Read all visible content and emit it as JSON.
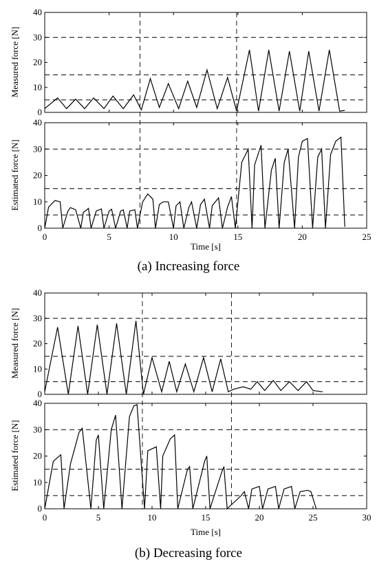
{
  "chart_data": [
    {
      "type": "line",
      "caption": "(a) Increasing force",
      "xlabel": "Time [s]",
      "xlim": [
        0,
        25
      ],
      "xticks": [
        0,
        5,
        10,
        15,
        20,
        25
      ],
      "vlines": [
        7.4,
        14.9
      ],
      "panels": [
        {
          "ylabel": "Measured force [N]",
          "ylim": [
            0,
            40
          ],
          "yticks": [
            0,
            10,
            20,
            30,
            40
          ],
          "hlines": [
            5,
            15,
            30
          ],
          "series": [
            {
              "x": [
                0,
                1.0,
                1.7,
                2.4,
                3.1,
                3.8,
                4.6,
                5.3,
                6.1,
                6.9,
                7.5,
                8.2,
                8.9,
                9.6,
                10.4,
                11.1,
                11.8,
                12.6,
                13.4,
                14.2,
                14.9,
                15.9,
                16.6,
                17.4,
                18.2,
                19.0,
                19.8,
                20.5,
                21.3,
                22.1,
                22.9,
                23.3
              ],
              "y": [
                1.5,
                5.8,
                1.5,
                5.3,
                1.5,
                5.8,
                1.5,
                6.5,
                1.5,
                7.0,
                1.0,
                13.5,
                2.0,
                11.5,
                1.5,
                12.5,
                2.0,
                17.0,
                1.5,
                14.0,
                0.5,
                25.0,
                0.5,
                25.0,
                0.5,
                24.5,
                0.5,
                24.5,
                0.5,
                25.0,
                0.5,
                0.8
              ]
            }
          ]
        },
        {
          "ylabel": "Estimated force [N]",
          "ylim": [
            0,
            40
          ],
          "yticks": [
            0,
            10,
            20,
            30,
            40
          ],
          "hlines": [
            5,
            15,
            30
          ],
          "series": [
            {
              "x": [
                0,
                0.3,
                0.8,
                1.2,
                1.4,
                1.8,
                2.0,
                2.4,
                2.8,
                3.0,
                3.4,
                3.6,
                4.0,
                4.4,
                4.6,
                5.0,
                5.2,
                5.5,
                5.9,
                6.1,
                6.4,
                6.6,
                7.0,
                7.2,
                7.6,
                8.0,
                8.4,
                8.6,
                8.9,
                9.2,
                9.6,
                10.0,
                10.2,
                10.5,
                10.8,
                11.2,
                11.4,
                11.8,
                12.1,
                12.4,
                12.8,
                13.0,
                13.5,
                13.8,
                14.2,
                14.5,
                14.8,
                15.3,
                15.8,
                16.1,
                16.3,
                16.8,
                17.1,
                17.6,
                17.9,
                18.2,
                18.6,
                18.9,
                19.4,
                19.7,
                20.0,
                20.4,
                20.8,
                21.2,
                21.5,
                21.8,
                22.2,
                22.6,
                23.0,
                23.3
              ],
              "y": [
                0,
                8,
                10.5,
                10,
                0,
                6.5,
                7.8,
                7,
                0,
                6,
                7.5,
                0,
                6.5,
                7.3,
                0,
                6.5,
                7.2,
                0,
                6.5,
                7,
                0,
                6.5,
                7,
                0,
                10,
                13,
                11,
                0,
                9,
                10,
                10,
                0,
                8.5,
                10,
                0,
                8,
                10,
                0,
                9,
                11,
                0,
                8.5,
                11.5,
                0,
                8,
                12,
                0,
                25,
                30,
                0,
                24,
                31.5,
                0,
                22,
                26.5,
                0,
                25,
                30,
                0,
                27,
                33,
                34,
                0,
                27,
                30,
                0,
                28,
                33,
                34.5,
                0.5
              ]
            }
          ]
        }
      ]
    },
    {
      "type": "line",
      "caption": "(b) Decreasing force",
      "xlabel": "Time [s]",
      "xlim": [
        0,
        30
      ],
      "xticks": [
        0,
        5,
        10,
        15,
        20,
        25,
        30
      ],
      "vlines": [
        9.1,
        17.4
      ],
      "panels": [
        {
          "ylabel": "Measured force [N]",
          "ylim": [
            0,
            40
          ],
          "yticks": [
            0,
            10,
            20,
            30,
            40
          ],
          "hlines": [
            5,
            15,
            30
          ],
          "series": [
            {
              "x": [
                0,
                1.2,
                2.2,
                3.1,
                4.0,
                4.9,
                5.8,
                6.7,
                7.6,
                8.5,
                9.2,
                10.0,
                10.9,
                11.6,
                12.3,
                13.1,
                13.9,
                14.8,
                15.6,
                16.4,
                17.1,
                17.6,
                18.5,
                19.2,
                19.8,
                20.5,
                21.3,
                22.0,
                22.8,
                23.6,
                24.4,
                25.0,
                25.9
              ],
              "y": [
                1,
                26.5,
                0,
                27,
                0,
                27.5,
                0,
                28,
                0,
                29,
                0,
                14.5,
                1,
                13,
                1,
                12,
                1,
                14.5,
                1,
                14,
                1,
                2,
                3,
                2,
                5,
                1.5,
                5.5,
                1.5,
                5,
                1.5,
                5,
                1.5,
                1
              ]
            }
          ]
        },
        {
          "ylabel": "Estimated force [N]",
          "ylim": [
            0,
            40
          ],
          "yticks": [
            0,
            10,
            20,
            30,
            40
          ],
          "hlines": [
            5,
            15,
            30
          ],
          "series": [
            {
              "x": [
                0,
                0.8,
                1.5,
                1.8,
                2.4,
                3.2,
                3.5,
                4.3,
                4.8,
                5.0,
                5.5,
                6.2,
                6.6,
                7.2,
                7.9,
                8.3,
                8.6,
                9.3,
                9.6,
                10.4,
                10.8,
                11.0,
                11.7,
                12.1,
                12.4,
                13.3,
                13.5,
                13.8,
                14.9,
                15.1,
                15.4,
                16.5,
                16.7,
                17.0,
                18.3,
                18.6,
                19.0,
                19.3,
                20.0,
                20.3,
                20.8,
                21.5,
                21.8,
                22.3,
                23.0,
                23.3,
                23.8,
                24.5,
                24.8,
                25.3
              ],
              "y": [
                0,
                18,
                20.5,
                0,
                17,
                29,
                30.5,
                0,
                26,
                28,
                0,
                30,
                35.5,
                0,
                35,
                39,
                39.5,
                0,
                22,
                23.5,
                0,
                20,
                26.5,
                28,
                0,
                15,
                16,
                0,
                18,
                20,
                0,
                14,
                16,
                0,
                5,
                6.5,
                0,
                7.5,
                8.5,
                0,
                7.5,
                8.5,
                0,
                7.5,
                8.5,
                0,
                6.5,
                7,
                6.5,
                0
              ]
            }
          ]
        }
      ]
    }
  ]
}
